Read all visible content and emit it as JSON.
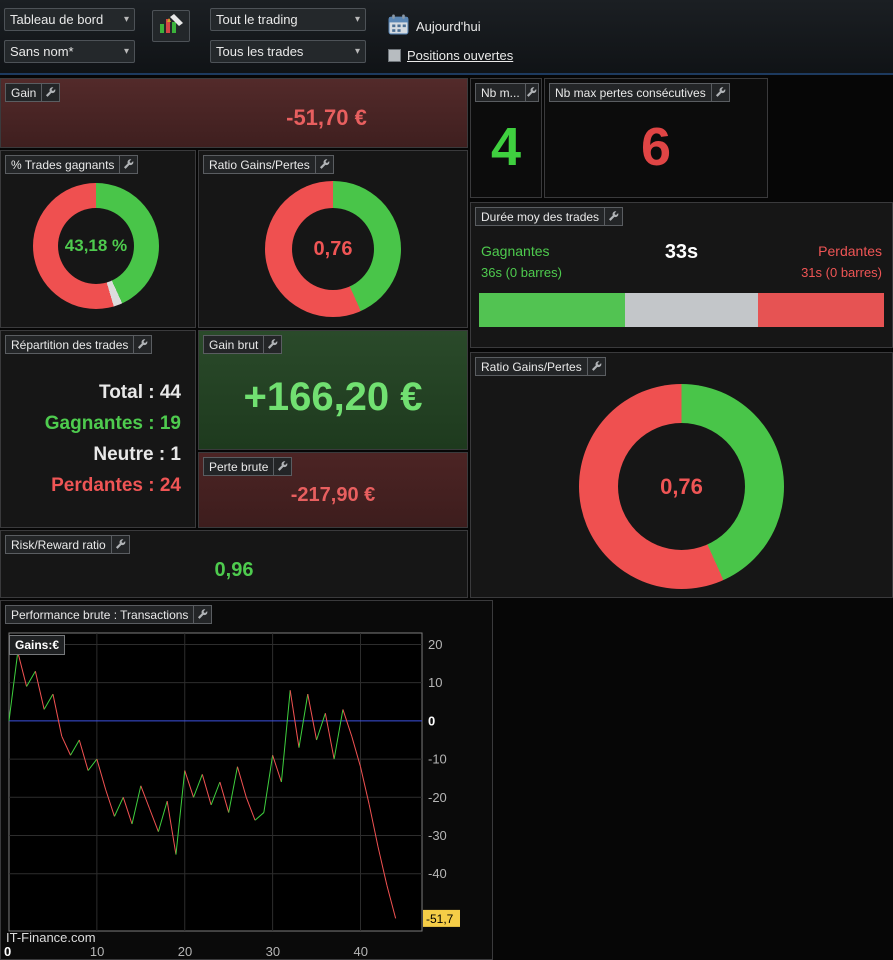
{
  "colors": {
    "green": "#4ecb4e",
    "red": "#ef5555",
    "dark_red_bg": "#4a2323",
    "dark_green_bg": "#254525",
    "zero_line_blue": "#3d52e0",
    "highlight_yellow": "#f5cd47"
  },
  "toolbar": {
    "dashboard_dropdown": "Tableau de bord",
    "layout_dropdown": "Sans nom*",
    "trading_scope_dropdown": "Tout le trading",
    "trades_filter_dropdown": "Tous les trades",
    "today_label": "Aujourd'hui",
    "open_positions_label": "Positions ouvertes"
  },
  "panels": {
    "gain": {
      "title": "Gain",
      "value": "-51,70 €"
    },
    "nb_max_gains": {
      "title": "Nb m...",
      "value": "4"
    },
    "nb_max_pertes": {
      "title": "Nb max pertes consécutives",
      "value": "6"
    },
    "pct_trades_gagnants": {
      "title": "% Trades gagnants",
      "value": "43,18 %",
      "segments": [
        {
          "pct": 43.18,
          "color": "#49c549"
        },
        {
          "pct": 2.27,
          "color": "#dcdcdc"
        },
        {
          "pct": 54.55,
          "color": "#ef5050"
        }
      ]
    },
    "ratio_gains_pertes": {
      "title": "Ratio Gains/Pertes",
      "value": "0,76",
      "segments": [
        {
          "pct": 43.3,
          "color": "#49c549"
        },
        {
          "pct": 56.7,
          "color": "#ef5050"
        }
      ]
    },
    "duree_moy": {
      "title": "Durée moy des trades",
      "gagnantes_label": "Gagnantes",
      "gagnantes_detail": "36s (0 barres)",
      "moyenne": "33s",
      "perdantes_label": "Perdantes",
      "perdantes_detail": "31s (0 barres)",
      "bar_segments": [
        {
          "pct": 36,
          "color": "#52c352"
        },
        {
          "pct": 33,
          "color": "#c3c6c9"
        },
        {
          "pct": 31,
          "color": "#e65353"
        }
      ]
    },
    "repartition": {
      "title": "Répartition des trades",
      "total": "Total : 44",
      "gagnantes": "Gagnantes : 19",
      "neutre": "Neutre : 1",
      "perdantes": "Perdantes : 24"
    },
    "gain_brut": {
      "title": "Gain brut",
      "value": "+166,20 €"
    },
    "perte_brute": {
      "title": "Perte brute",
      "value": "-217,90 €"
    },
    "ratio_gains_pertes_big": {
      "title": "Ratio Gains/Pertes",
      "value": "0,76",
      "segments": [
        {
          "pct": 43.3,
          "color": "#49c549"
        },
        {
          "pct": 56.7,
          "color": "#ef5050"
        }
      ]
    },
    "risk_reward": {
      "title": "Risk/Reward ratio",
      "value": "0,96"
    },
    "performance": {
      "title": "Performance brute : Transactions",
      "series_chip": "Gains:€"
    }
  },
  "chart_data": {
    "type": "line",
    "title": "Performance brute : Transactions",
    "ylabel_chip": "Gains:€",
    "values": [
      0,
      18,
      9,
      13,
      3,
      7,
      -4,
      -9,
      -5,
      -13,
      -10,
      -18,
      -25,
      -20,
      -27,
      -17,
      -23,
      -29,
      -21,
      -35,
      -13,
      -20,
      -14,
      -22,
      -16,
      -24,
      -12,
      -20,
      -26,
      -24,
      -9,
      -16,
      8,
      -7,
      7,
      -5,
      2,
      -10,
      3,
      -4,
      -12,
      -22,
      -33,
      -43,
      -51.7
    ],
    "xticks": [
      0,
      10,
      20,
      30,
      40
    ],
    "yticks": [
      20,
      10,
      0,
      -10,
      -20,
      -30,
      -40
    ],
    "xlim": [
      0,
      47
    ],
    "ylim": [
      -55,
      23
    ],
    "end_label": "-51,7",
    "watermark": "IT-Finance.com",
    "up_color": "#3ecf3e",
    "down_color": "#f25252",
    "zero_line_color": "#3d52e0",
    "grid_color": "#2d2d2d"
  }
}
